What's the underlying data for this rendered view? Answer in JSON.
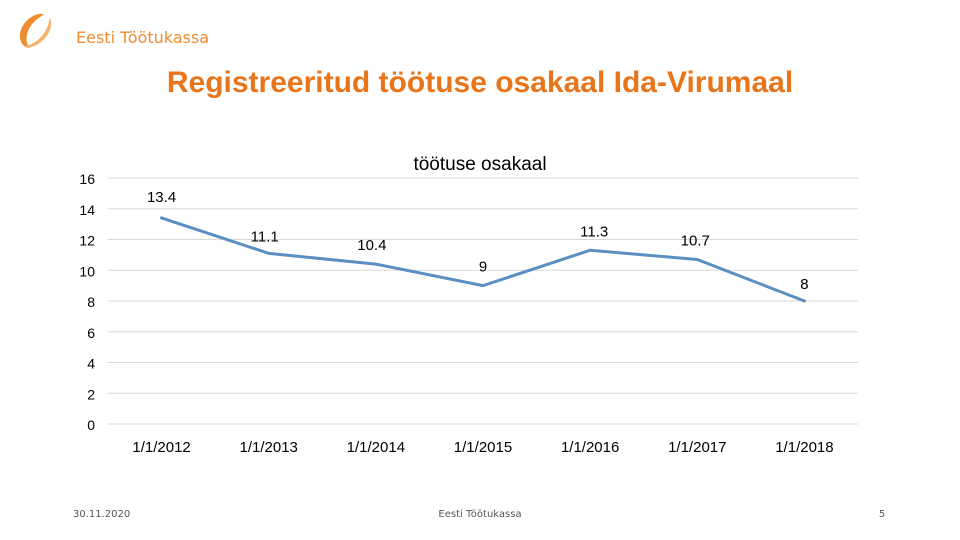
{
  "header": {
    "brand_name": "Eesti Töötukassa",
    "brand_color": "#f08c2e",
    "logo_icon": "swoosh-logo-icon"
  },
  "slide": {
    "title": "Registreeritud töötuse osakaal Ida-Virumaal",
    "title_color": "#e8751a"
  },
  "chart_data": {
    "type": "line",
    "title": "töötuse osakaal",
    "xlabel": "",
    "ylabel": "",
    "categories": [
      "1/1/2012",
      "1/1/2013",
      "1/1/2014",
      "1/1/2015",
      "1/1/2016",
      "1/1/2017",
      "1/1/2018"
    ],
    "series": [
      {
        "values": [
          13.4,
          11.1,
          10.4,
          9,
          11.3,
          10.7,
          8
        ],
        "color": "#5b8fc2"
      }
    ],
    "data_labels": [
      "13.4",
      "11.1",
      "10.4",
      "9",
      "11.3",
      "10.7",
      "8"
    ],
    "ylim": [
      0,
      16
    ],
    "yticks": [
      "0",
      "2",
      "4",
      "6",
      "8",
      "10",
      "12",
      "14",
      "16"
    ],
    "grid": true,
    "legend": "none"
  },
  "footer": {
    "date": "30.11.2020",
    "center_text": "Eesti Töötukassa",
    "page_number": "5"
  }
}
